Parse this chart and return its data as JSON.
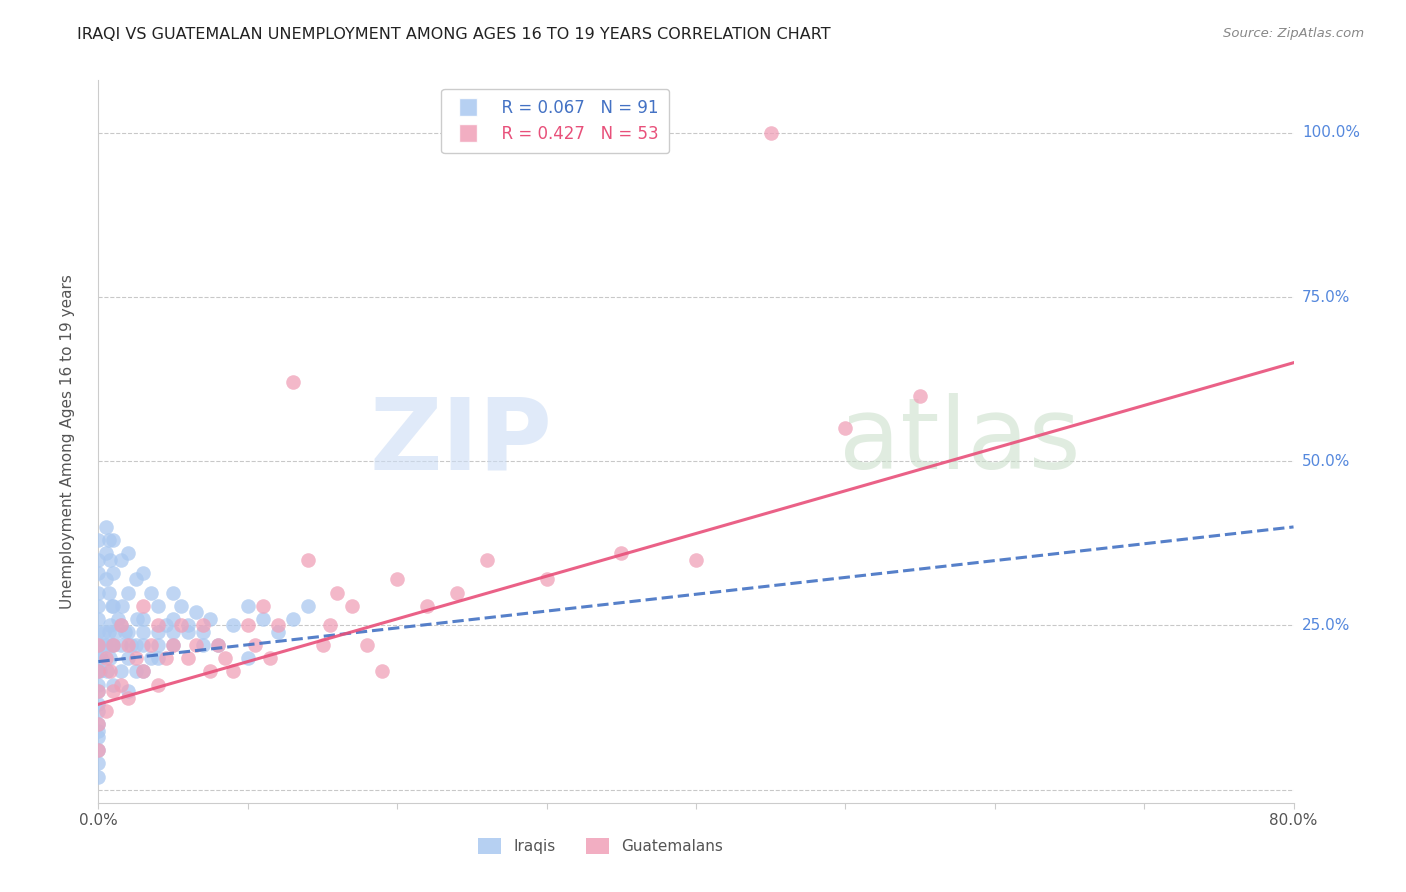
{
  "title": "IRAQI VS GUATEMALAN UNEMPLOYMENT AMONG AGES 16 TO 19 YEARS CORRELATION CHART",
  "source": "Source: ZipAtlas.com",
  "ylabel": "Unemployment Among Ages 16 to 19 years",
  "xlim": [
    0.0,
    0.8
  ],
  "ylim": [
    -0.02,
    1.08
  ],
  "background_color": "#ffffff",
  "grid_color": "#bbbbbb",
  "iraqis_color": "#aac8f0",
  "guatemalans_color": "#f0a0b8",
  "iraqis_line_color": "#4472c4",
  "guatemalans_line_color": "#e8507a",
  "iraqis_R": 0.067,
  "iraqis_N": 91,
  "guatemalans_R": 0.427,
  "guatemalans_N": 53,
  "iraq_line_x0": 0.0,
  "iraq_line_y0": 0.195,
  "iraq_line_x1": 0.8,
  "iraq_line_y1": 0.4,
  "guate_line_x0": 0.0,
  "guate_line_y0": 0.13,
  "guate_line_x1": 0.8,
  "guate_line_y1": 0.65,
  "iraq_x": [
    0.0,
    0.0,
    0.0,
    0.0,
    0.0,
    0.0,
    0.0,
    0.0,
    0.0,
    0.0,
    0.0,
    0.0,
    0.0,
    0.0,
    0.0,
    0.0,
    0.0,
    0.0,
    0.0,
    0.0,
    0.005,
    0.005,
    0.005,
    0.005,
    0.007,
    0.007,
    0.007,
    0.008,
    0.008,
    0.009,
    0.01,
    0.01,
    0.01,
    0.01,
    0.01,
    0.015,
    0.015,
    0.015,
    0.02,
    0.02,
    0.02,
    0.02,
    0.025,
    0.025,
    0.03,
    0.03,
    0.03,
    0.035,
    0.035,
    0.04,
    0.04,
    0.045,
    0.05,
    0.05,
    0.055,
    0.06,
    0.065,
    0.07,
    0.075,
    0.08,
    0.09,
    0.1,
    0.1,
    0.11,
    0.12,
    0.13,
    0.14,
    0.015,
    0.02,
    0.025,
    0.03,
    0.04,
    0.05,
    0.06,
    0.07,
    0.001,
    0.002,
    0.003,
    0.004,
    0.006,
    0.008,
    0.009,
    0.011,
    0.013,
    0.016,
    0.018,
    0.022,
    0.026,
    0.03,
    0.04,
    0.05
  ],
  "iraq_y": [
    0.38,
    0.35,
    0.33,
    0.3,
    0.28,
    0.26,
    0.24,
    0.22,
    0.2,
    0.18,
    0.16,
    0.15,
    0.13,
    0.12,
    0.1,
    0.09,
    0.08,
    0.06,
    0.04,
    0.02,
    0.4,
    0.36,
    0.32,
    0.22,
    0.38,
    0.3,
    0.24,
    0.35,
    0.25,
    0.28,
    0.38,
    0.33,
    0.28,
    0.22,
    0.16,
    0.35,
    0.25,
    0.18,
    0.36,
    0.3,
    0.24,
    0.15,
    0.32,
    0.22,
    0.33,
    0.26,
    0.18,
    0.3,
    0.2,
    0.28,
    0.2,
    0.25,
    0.3,
    0.22,
    0.28,
    0.25,
    0.27,
    0.24,
    0.26,
    0.22,
    0.25,
    0.28,
    0.2,
    0.26,
    0.24,
    0.26,
    0.28,
    0.22,
    0.2,
    0.18,
    0.22,
    0.24,
    0.26,
    0.24,
    0.22,
    0.18,
    0.2,
    0.22,
    0.24,
    0.18,
    0.2,
    0.22,
    0.24,
    0.26,
    0.28,
    0.24,
    0.22,
    0.26,
    0.24,
    0.22,
    0.24
  ],
  "guate_x": [
    0.0,
    0.0,
    0.0,
    0.0,
    0.0,
    0.005,
    0.005,
    0.008,
    0.01,
    0.01,
    0.015,
    0.015,
    0.02,
    0.02,
    0.025,
    0.03,
    0.03,
    0.035,
    0.04,
    0.04,
    0.045,
    0.05,
    0.055,
    0.06,
    0.065,
    0.07,
    0.075,
    0.08,
    0.085,
    0.09,
    0.1,
    0.105,
    0.11,
    0.115,
    0.12,
    0.13,
    0.14,
    0.15,
    0.155,
    0.16,
    0.17,
    0.18,
    0.19,
    0.2,
    0.22,
    0.24,
    0.26,
    0.3,
    0.35,
    0.4,
    0.45,
    0.5,
    0.55
  ],
  "guate_y": [
    0.22,
    0.18,
    0.15,
    0.1,
    0.06,
    0.2,
    0.12,
    0.18,
    0.22,
    0.15,
    0.25,
    0.16,
    0.22,
    0.14,
    0.2,
    0.28,
    0.18,
    0.22,
    0.25,
    0.16,
    0.2,
    0.22,
    0.25,
    0.2,
    0.22,
    0.25,
    0.18,
    0.22,
    0.2,
    0.18,
    0.25,
    0.22,
    0.28,
    0.2,
    0.25,
    0.62,
    0.35,
    0.22,
    0.25,
    0.3,
    0.28,
    0.22,
    0.18,
    0.32,
    0.28,
    0.3,
    0.35,
    0.32,
    0.36,
    0.35,
    1.0,
    0.55,
    0.6
  ]
}
